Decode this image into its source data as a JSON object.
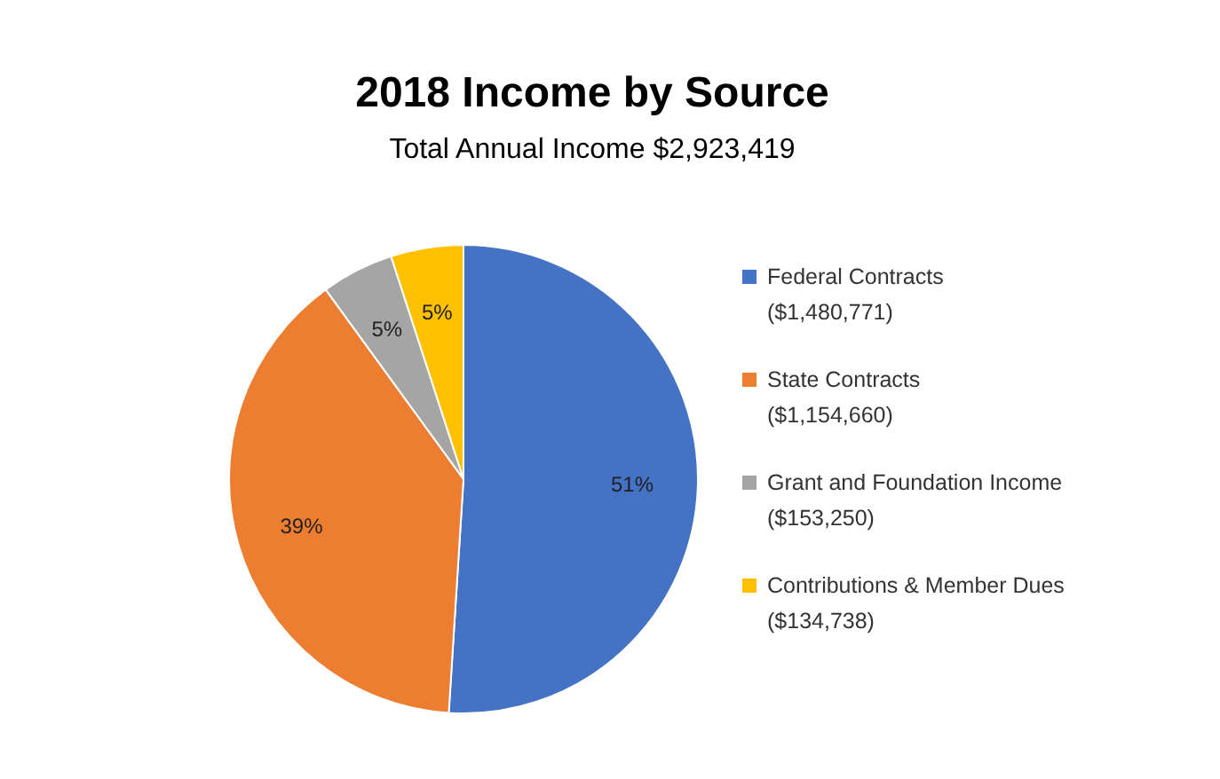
{
  "chart_data": {
    "type": "pie",
    "title": "2018 Income by Source",
    "subtitle": "Total Annual Income $2,923,419",
    "categories": [
      "Federal Contracts\n($1,480,771)",
      "State Contracts\n($1,154,660)",
      "Grant and Foundation Income\n($153,250)",
      "Contributions & Member Dues\n($134,738)"
    ],
    "values": [
      51,
      39,
      5,
      5
    ],
    "colors": [
      "#4472c4",
      "#ed7d31",
      "#a5a5a5",
      "#ffc000"
    ],
    "value_labels": [
      "51%",
      "39%",
      "5%",
      "5%"
    ],
    "legend": "right"
  }
}
